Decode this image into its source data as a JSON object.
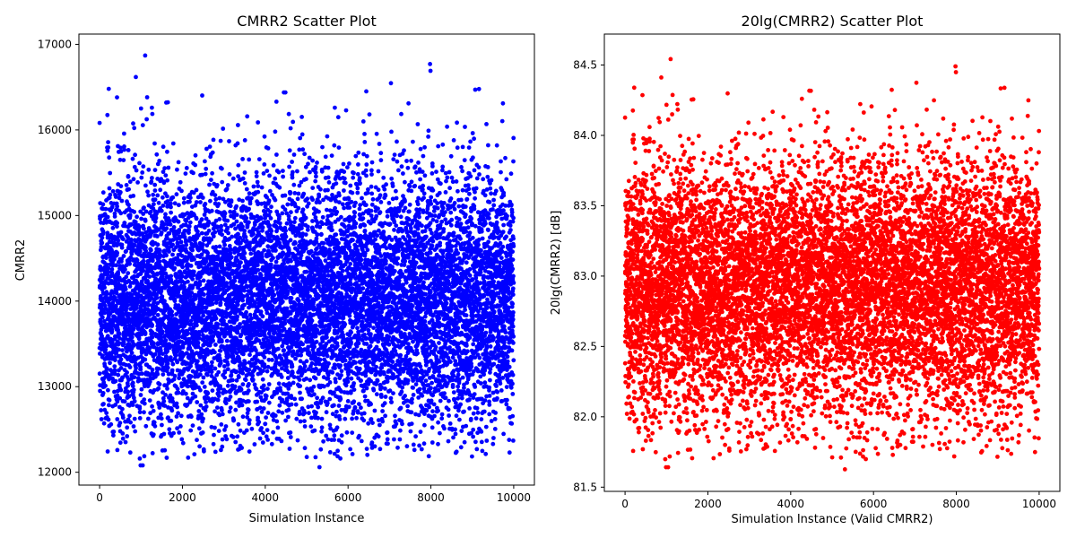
{
  "chart_data": [
    {
      "type": "scatter",
      "title": "CMRR2 Scatter Plot",
      "xlabel": "Simulation Instance",
      "ylabel": "CMRR2",
      "xlim": [
        -500,
        10500
      ],
      "ylim": [
        11850,
        17120
      ],
      "xticks": [
        0,
        2000,
        4000,
        6000,
        8000,
        10000
      ],
      "yticks": [
        12000,
        13000,
        14000,
        15000,
        16000,
        17000
      ],
      "grid": false,
      "color": "#0000ff",
      "n_points": 10000,
      "distribution": {
        "mean": 14000,
        "std": 750,
        "min": 12060,
        "max": 16870
      },
      "outliers": [
        {
          "x": 1100,
          "y": 16870
        },
        {
          "x": 7980,
          "y": 16770
        },
        {
          "x": 7990,
          "y": 16690
        },
        {
          "x": 220,
          "y": 16480
        },
        {
          "x": 420,
          "y": 16380
        },
        {
          "x": 9070,
          "y": 16470
        },
        {
          "x": 6440,
          "y": 16450
        },
        {
          "x": 4270,
          "y": 16330
        },
        {
          "x": 1610,
          "y": 16320
        },
        {
          "x": 7460,
          "y": 16310
        },
        {
          "x": 9740,
          "y": 16310
        },
        {
          "x": 1000,
          "y": 16250
        },
        {
          "x": 5680,
          "y": 16260
        },
        {
          "x": 5310,
          "y": 12060
        },
        {
          "x": 990,
          "y": 12080
        },
        {
          "x": 1040,
          "y": 12080
        },
        {
          "x": 970,
          "y": 12160
        },
        {
          "x": 1620,
          "y": 12170
        },
        {
          "x": 2290,
          "y": 12210
        },
        {
          "x": 5750,
          "y": 12250
        },
        {
          "x": 8620,
          "y": 12240
        },
        {
          "x": 9110,
          "y": 12270
        },
        {
          "x": 740,
          "y": 12230
        },
        {
          "x": 9990,
          "y": 12370
        },
        {
          "x": 4060,
          "y": 12380
        }
      ]
    },
    {
      "type": "scatter",
      "title": "20lg(CMRR2) Scatter Plot",
      "xlabel": "Simulation Instance (Valid CMRR2)",
      "ylabel": "20lg(CMRR2) [dB]",
      "xlim": [
        -500,
        10500
      ],
      "ylim": [
        81.47,
        84.72
      ],
      "xticks": [
        0,
        2000,
        4000,
        6000,
        8000,
        10000
      ],
      "yticks": [
        81.5,
        82.0,
        82.5,
        83.0,
        83.5,
        84.0,
        84.5
      ],
      "grid": false,
      "color": "#ff0000",
      "n_points": 10000,
      "transform": "20*log10(CMRR2)"
    }
  ]
}
